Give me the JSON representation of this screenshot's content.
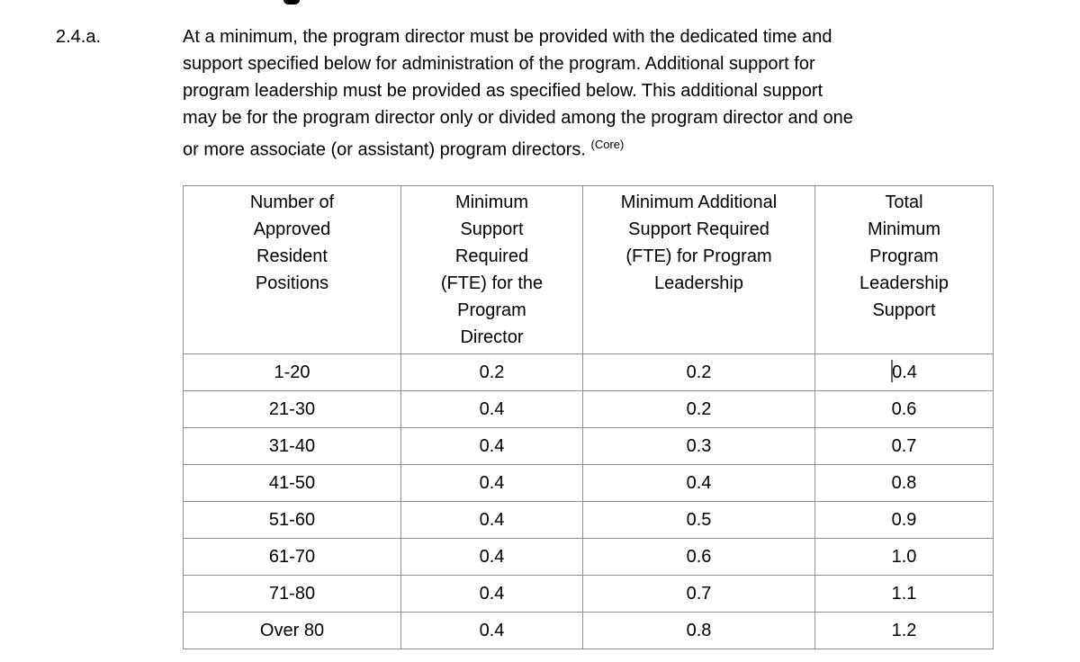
{
  "clause": {
    "number": "2.4.a.",
    "text": "At a minimum, the program director must be provided with the dedicated time and\nsupport specified below for administration of the program. Additional support for\nprogram leadership must be provided as specified below. This additional support\nmay be for the program director only or divided among the program director and one\nor more associate (or assistant) program directors. ",
    "superscript": "(Core)"
  },
  "table": {
    "headers": [
      "Number of\nApproved\nResident\nPositions",
      "Minimum\nSupport\nRequired\n(FTE) for the\nProgram\nDirector",
      "Minimum Additional\nSupport Required\n(FTE) for Program\nLeadership",
      "Total\nMinimum\nProgram\nLeadership\nSupport"
    ],
    "rows": [
      {
        "cells": [
          "1-20",
          "0.2",
          "0.2",
          "0.4"
        ]
      },
      {
        "cells": [
          "21-30",
          "0.4",
          "0.2",
          "0.6"
        ]
      },
      {
        "cells": [
          "31-40",
          "0.4",
          "0.3",
          "0.7"
        ]
      },
      {
        "cells": [
          "41-50",
          "0.4",
          "0.4",
          "0.8"
        ]
      },
      {
        "cells": [
          "51-60",
          "0.4",
          "0.5",
          "0.9"
        ]
      },
      {
        "cells": [
          "61-70",
          "0.4",
          "0.6",
          "1.0"
        ]
      },
      {
        "cells": [
          "71-80",
          "0.4",
          "0.7",
          "1.1"
        ]
      },
      {
        "cells": [
          "Over 80",
          "0.4",
          "0.8",
          "1.2"
        ]
      }
    ],
    "caret": {
      "row": 0,
      "col": 3
    }
  },
  "colors": {
    "table_border": "#8f8f8f",
    "caret": "#696969",
    "text": "#000000",
    "background": "#ffffff"
  }
}
